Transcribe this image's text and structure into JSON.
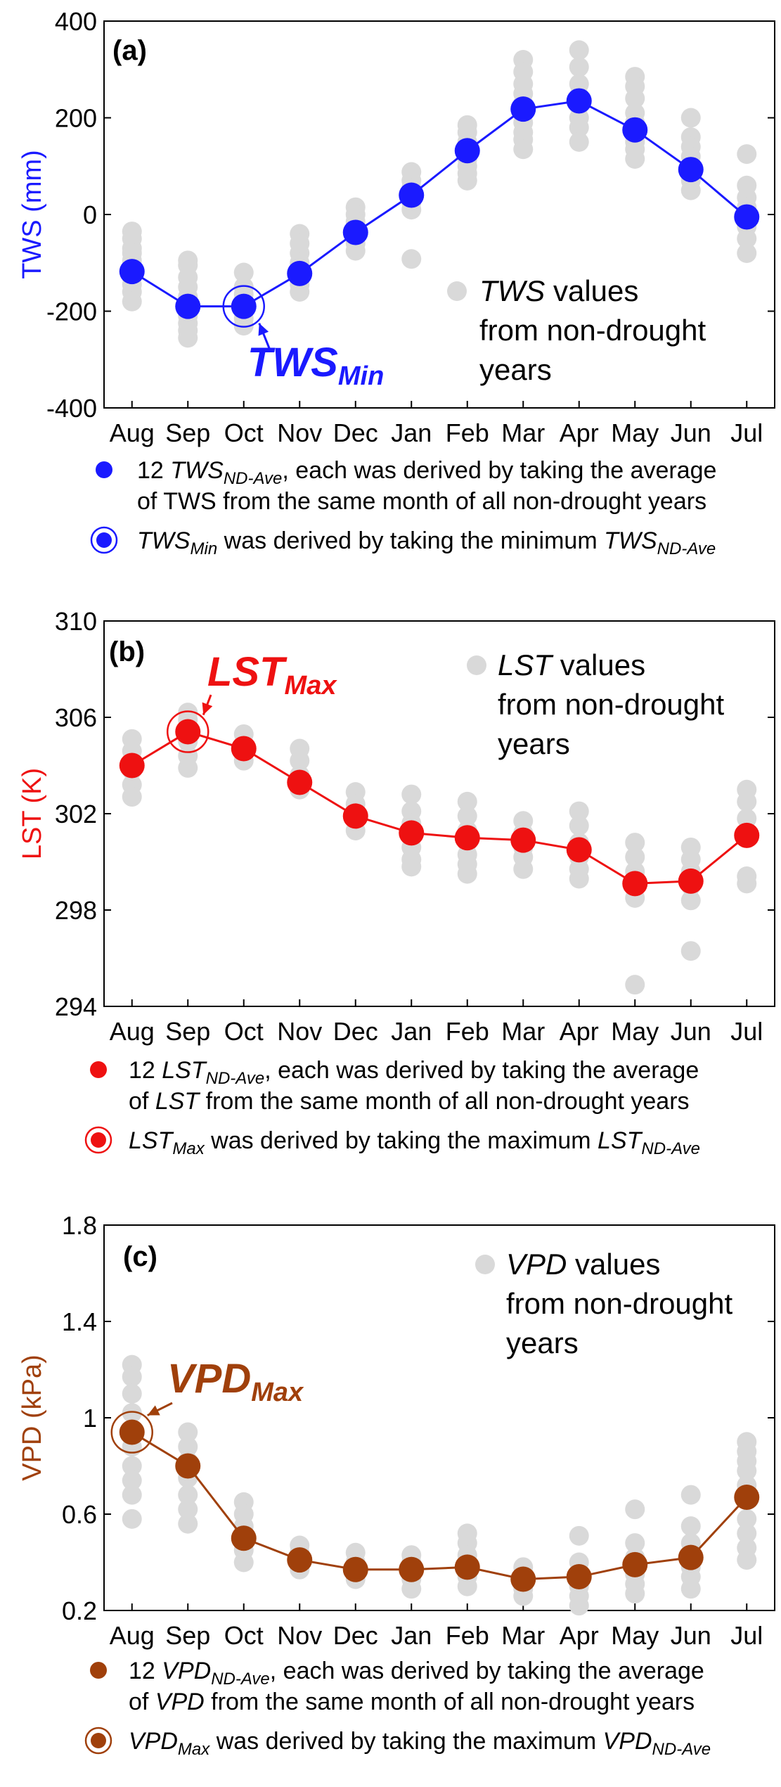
{
  "months": [
    "Aug",
    "Sep",
    "Oct",
    "Nov",
    "Dec",
    "Jan",
    "Feb",
    "Mar",
    "Apr",
    "May",
    "Jun",
    "Jul"
  ],
  "chart_data": [
    {
      "type": "scatter",
      "panel": "(a)",
      "ylabel": "TWS (mm)",
      "ylim": [
        -400,
        400
      ],
      "yticks": [
        "400",
        "200",
        "0",
        "-200",
        "-400"
      ],
      "ytick_values": [
        400,
        200,
        0,
        -200,
        -400
      ],
      "color": "#1a1aff",
      "averages": [
        -118,
        -190,
        -190,
        -122,
        -37,
        40,
        132,
        218,
        235,
        175,
        93,
        -5
      ],
      "nondrought": [
        [
          -35,
          -50,
          -70,
          -80,
          -95,
          -110,
          -130,
          -145,
          -160,
          -180
        ],
        [
          -95,
          -105,
          -130,
          -150,
          -170,
          -190,
          -210,
          -225,
          -240,
          -255
        ],
        [
          -120,
          -150,
          -165,
          -180,
          -200,
          -215,
          -230
        ],
        [
          -40,
          -60,
          -80,
          -100,
          -115,
          -130,
          -145,
          -160
        ],
        [
          15,
          0,
          -15,
          -30,
          -45,
          -60,
          -75
        ],
        [
          88,
          70,
          55,
          40,
          25,
          10,
          -92
        ],
        [
          185,
          170,
          150,
          130,
          115,
          100,
          85,
          70
        ],
        [
          320,
          295,
          270,
          250,
          230,
          210,
          190,
          170,
          155,
          135
        ],
        [
          340,
          305,
          270,
          245,
          225,
          200,
          180,
          150
        ],
        [
          285,
          265,
          240,
          210,
          190,
          170,
          150,
          135,
          115
        ],
        [
          200,
          160,
          140,
          120,
          100,
          85,
          70,
          50
        ],
        [
          125,
          60,
          35,
          15,
          -5,
          -25,
          -50,
          -80
        ]
      ],
      "extreme_index": 2,
      "extreme_label": "TWS",
      "extreme_sub": "Min",
      "inset": [
        "TWS",
        " values",
        "from non-drought",
        "years"
      ],
      "legend": [
        {
          "pre": "12 ",
          "it": "TWS",
          "sub": "ND-Ave",
          "post": ", each was derived by taking the average"
        },
        {
          "text": "of TWS from the same month of all non-drought years"
        },
        {
          "it": "TWS",
          "sub": "Min",
          "post": " was derived by taking the minimum ",
          "it2": "TWS",
          "sub2": "ND-Ave"
        }
      ]
    },
    {
      "type": "scatter",
      "panel": "(b)",
      "ylabel": "LST (K)",
      "ylim": [
        294,
        310
      ],
      "yticks": [
        "310",
        "306",
        "302",
        "298",
        "294"
      ],
      "ytick_values": [
        310,
        306,
        302,
        298,
        294
      ],
      "color": "#ee1111",
      "averages": [
        304.0,
        305.4,
        304.7,
        303.3,
        301.9,
        301.2,
        301.0,
        300.9,
        300.5,
        299.1,
        299.2,
        301.1
      ],
      "nondrought": [
        [
          305.1,
          304.6,
          304.2,
          303.8,
          303.2,
          302.7
        ],
        [
          306.2,
          305.9,
          305.5,
          305.0,
          304.4,
          303.9
        ],
        [
          305.3,
          304.9,
          304.5,
          304.2
        ],
        [
          304.7,
          304.2,
          303.6,
          303.0
        ],
        [
          302.9,
          302.4,
          301.8,
          301.3
        ],
        [
          302.8,
          302.1,
          301.6,
          301.0,
          300.6,
          300.1,
          299.8
        ],
        [
          302.5,
          301.9,
          301.3,
          300.8,
          300.3,
          299.9,
          299.5
        ],
        [
          301.7,
          301.2,
          300.6,
          300.2,
          299.7
        ],
        [
          302.1,
          301.5,
          300.8,
          300.2,
          299.7,
          299.3
        ],
        [
          300.8,
          300.2,
          299.6,
          299.1,
          298.5,
          294.9
        ],
        [
          300.6,
          300.1,
          299.6,
          299.0,
          298.4,
          296.3
        ],
        [
          303.0,
          302.5,
          301.8,
          301.1,
          299.4,
          299.1
        ]
      ],
      "extreme_index": 1,
      "extreme_label": "LST",
      "extreme_sub": "Max",
      "inset": [
        "LST",
        " values",
        "from non-drought",
        "years"
      ],
      "legend": [
        {
          "pre": "12 ",
          "it": "LST",
          "sub": "ND-Ave",
          "post": ", each was derived by taking the average"
        },
        {
          "pre": "of ",
          "it": "LST",
          "post": " from the same month of all non-drought years"
        },
        {
          "it": "LST",
          "sub": "Max",
          "post": " was derived by taking the maximum ",
          "it2": "LST",
          "sub2": "ND-Ave"
        }
      ]
    },
    {
      "type": "scatter",
      "panel": "(c)",
      "ylabel": "VPD (kPa)",
      "ylim": [
        0.2,
        1.8
      ],
      "yticks": [
        "1.8",
        "1.4",
        "1",
        "0.6",
        "0.2"
      ],
      "ytick_values": [
        1.8,
        1.4,
        1.0,
        0.6,
        0.2
      ],
      "color": "#a0400b",
      "averages": [
        0.94,
        0.8,
        0.5,
        0.41,
        0.37,
        0.37,
        0.38,
        0.33,
        0.34,
        0.39,
        0.42,
        0.67
      ],
      "nondrought": [
        [
          1.22,
          1.17,
          1.1,
          1.02,
          0.95,
          0.88,
          0.8,
          0.74,
          0.68,
          0.58
        ],
        [
          0.94,
          0.88,
          0.82,
          0.75,
          0.68,
          0.62,
          0.56
        ],
        [
          0.65,
          0.6,
          0.55,
          0.5,
          0.45,
          0.4
        ],
        [
          0.47,
          0.44,
          0.41,
          0.37
        ],
        [
          0.44,
          0.4,
          0.37,
          0.33
        ],
        [
          0.43,
          0.4,
          0.36,
          0.33,
          0.29
        ],
        [
          0.52,
          0.48,
          0.43,
          0.38,
          0.34,
          0.3
        ],
        [
          0.38,
          0.35,
          0.32,
          0.29,
          0.26
        ],
        [
          0.51,
          0.4,
          0.36,
          0.33,
          0.3,
          0.26,
          0.22
        ],
        [
          0.62,
          0.48,
          0.42,
          0.38,
          0.35,
          0.31,
          0.27
        ],
        [
          0.68,
          0.55,
          0.48,
          0.42,
          0.38,
          0.34,
          0.29
        ],
        [
          0.9,
          0.86,
          0.82,
          0.78,
          0.72,
          0.67,
          0.58,
          0.52,
          0.46,
          0.41
        ]
      ],
      "extreme_index": 0,
      "extreme_label": "VPD",
      "extreme_sub": "Max",
      "inset": [
        "VPD",
        " values",
        "from non-drought",
        "years"
      ],
      "legend": [
        {
          "pre": "12 ",
          "it": "VPD",
          "sub": "ND-Ave",
          "post": ", each was derived by taking the average"
        },
        {
          "pre": "of ",
          "it": "VPD",
          "post": " from the same month of all non-drought years"
        },
        {
          "it": "VPD",
          "sub": "Max",
          "post": " was derived by taking the maximum ",
          "it2": "VPD",
          "sub2": "ND-Ave"
        }
      ]
    }
  ]
}
